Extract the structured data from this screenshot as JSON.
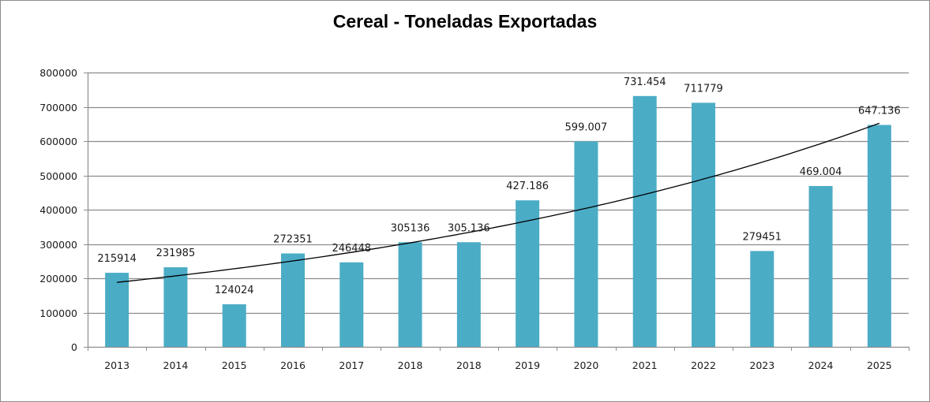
{
  "chart_data": {
    "type": "bar",
    "title": "Cereal - Toneladas Exportadas",
    "xlabel": "",
    "ylabel": "",
    "categories": [
      "2013",
      "2014",
      "2015",
      "2016",
      "2017",
      "2018",
      "2018",
      "2019",
      "2020",
      "2021",
      "2022",
      "2023",
      "2024",
      "2025"
    ],
    "series": [
      {
        "name": "Toneladas Exportadas",
        "color": "#4BACC6",
        "values": [
          215914,
          231985,
          124024,
          272351,
          246448,
          305136,
          305136,
          427186,
          599007,
          731454,
          711779,
          279451,
          469004,
          647136
        ],
        "data_labels": [
          "215914",
          "231985",
          "124024",
          "272351",
          "246448",
          "305136",
          "305.136",
          "427.186",
          "599.007",
          "731.454",
          "711779",
          "279451",
          "469.004",
          "647.136"
        ]
      }
    ],
    "trendline": {
      "type": "exponential",
      "color": "#000000",
      "start_value": 188000,
      "end_value": 652000
    },
    "ylim": [
      0,
      800000
    ],
    "yticks": [
      0,
      100000,
      200000,
      300000,
      400000,
      500000,
      600000,
      700000,
      800000
    ],
    "ytick_labels": [
      "0",
      "100000",
      "200000",
      "300000",
      "400000",
      "500000",
      "600000",
      "700000",
      "800000"
    ],
    "grid": true,
    "legend": "none"
  }
}
